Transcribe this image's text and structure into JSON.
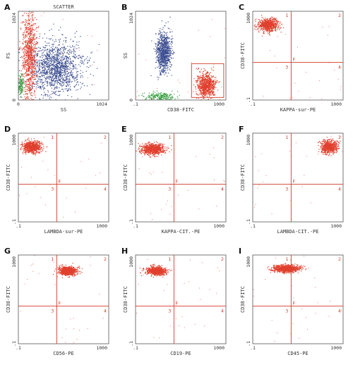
{
  "colors": {
    "red": "#e0402e",
    "blue": "#3d4f92",
    "green": "#3aa043",
    "gate": "#d23a2a",
    "frame": "#555555"
  },
  "chart_data": [
    {
      "letter": "A",
      "type": "scatter",
      "title": "SCATTER",
      "xlabel": "SS",
      "ylabel": "FS",
      "scale": "linear",
      "xlim": [
        0,
        1024
      ],
      "ylim": [
        0,
        1024
      ],
      "xticks": [
        "0",
        "1024"
      ],
      "yticks": [
        "0",
        "1024"
      ],
      "clusters": [
        {
          "color": "blue",
          "cx": 420,
          "cy": 380,
          "sx": 150,
          "sy": 150,
          "n": 1400
        },
        {
          "color": "red",
          "cx": 120,
          "cy": 520,
          "sx": 40,
          "sy": 280,
          "n": 900
        },
        {
          "color": "green",
          "cx": 25,
          "cy": 180,
          "sx": 15,
          "sy": 60,
          "n": 120
        }
      ]
    },
    {
      "letter": "B",
      "type": "scatter",
      "title": "",
      "xlabel": "CD38-FITC",
      "ylabel": "SS",
      "scale": "log-x",
      "xlim": [
        0.1,
        1000
      ],
      "ylim": [
        0,
        1024
      ],
      "xticks": [
        ".1",
        "1000"
      ],
      "yticks": [
        "0",
        "1024"
      ],
      "gate": {
        "x": [
          30,
          800
        ],
        "y": [
          30,
          420
        ]
      },
      "clusters": [
        {
          "color": "blue",
          "cx": 1.7,
          "cy": 560,
          "sx": 0.17,
          "sy": 110,
          "n": 900
        },
        {
          "color": "red",
          "cx": 130,
          "cy": 170,
          "sx": 0.2,
          "sy": 70,
          "n": 800
        },
        {
          "color": "green",
          "cx": 1.2,
          "cy": 40,
          "sx": 0.35,
          "sy": 25,
          "n": 220
        }
      ]
    },
    {
      "letter": "C",
      "type": "scatter",
      "title": "",
      "xlabel": "KAPPA-sur-PE",
      "ylabel": "CD38-FITC",
      "scale": "log",
      "xlim": [
        0.1,
        1000
      ],
      "ylim": [
        0.1,
        1000
      ],
      "quad_x": 5,
      "quad_y": 5,
      "xticks": [
        ".1",
        "1000"
      ],
      "yticks": [
        ".1",
        "1000"
      ],
      "quadrants": [
        "1",
        "2",
        "3",
        "4"
      ],
      "gate_label": "F",
      "clusters": [
        {
          "color": "red",
          "cx": 0.45,
          "cy": 250,
          "sx": 0.22,
          "sy": 0.14,
          "n": 700
        }
      ]
    },
    {
      "letter": "D",
      "type": "scatter",
      "title": "",
      "xlabel": "LAMBDA-sur-PE",
      "ylabel": "CD38-FITC",
      "scale": "log",
      "xlim": [
        0.1,
        1000
      ],
      "ylim": [
        0.1,
        1000
      ],
      "quad_x": 5,
      "quad_y": 5,
      "xticks": [
        ".1",
        "1000"
      ],
      "yticks": [
        ".1",
        "1000"
      ],
      "quadrants": [
        "1",
        "2",
        "3",
        "4"
      ],
      "gate_label": "F",
      "clusters": [
        {
          "color": "red",
          "cx": 0.38,
          "cy": 250,
          "sx": 0.2,
          "sy": 0.13,
          "n": 700
        }
      ]
    },
    {
      "letter": "E",
      "type": "scatter",
      "title": "",
      "xlabel": "KAPPA-CIT.-PE",
      "ylabel": "CD38-FITC",
      "scale": "log",
      "xlim": [
        0.1,
        1000
      ],
      "ylim": [
        0.1,
        1000
      ],
      "quad_x": 5,
      "quad_y": 5,
      "xticks": [
        ".1",
        "1000"
      ],
      "yticks": [
        ".1",
        "1000"
      ],
      "quadrants": [
        "1",
        "2",
        "3",
        "4"
      ],
      "gate_label": "F",
      "clusters": [
        {
          "color": "red",
          "cx": 0.55,
          "cy": 200,
          "sx": 0.25,
          "sy": 0.12,
          "n": 800
        }
      ]
    },
    {
      "letter": "F",
      "type": "scatter",
      "title": "",
      "xlabel": "LAMBDA-CIT.-PE",
      "ylabel": "CD38-FITC",
      "scale": "log",
      "xlim": [
        0.1,
        1000
      ],
      "ylim": [
        0.1,
        1000
      ],
      "quad_x": 5,
      "quad_y": 5,
      "xticks": [
        ".1",
        "1000"
      ],
      "yticks": [
        ".1",
        "1000"
      ],
      "quadrants": [
        "1",
        "2",
        "3",
        "4"
      ],
      "gate_label": "F",
      "clusters": [
        {
          "color": "red",
          "cx": 220,
          "cy": 250,
          "sx": 0.17,
          "sy": 0.14,
          "n": 700
        }
      ]
    },
    {
      "letter": "G",
      "type": "scatter",
      "title": "",
      "xlabel": "CD56-PE",
      "ylabel": "CD38-FITC",
      "scale": "log",
      "xlim": [
        0.1,
        1000
      ],
      "ylim": [
        0.1,
        1000
      ],
      "quad_x": 5,
      "quad_y": 5,
      "xticks": [
        ".1",
        "1000"
      ],
      "yticks": [
        ".1",
        "1000"
      ],
      "quadrants": [
        "1",
        "2",
        "3",
        "4"
      ],
      "gate_label": "F",
      "clusters": [
        {
          "color": "red",
          "cx": 15,
          "cy": 200,
          "sx": 0.2,
          "sy": 0.1,
          "n": 750
        }
      ]
    },
    {
      "letter": "H",
      "type": "scatter",
      "title": "",
      "xlabel": "CD19-PE",
      "ylabel": "CD38-FITC",
      "scale": "log",
      "xlim": [
        0.1,
        1000
      ],
      "ylim": [
        0.1,
        1000
      ],
      "quad_x": 5,
      "quad_y": 5,
      "xticks": [
        ".1",
        "1000"
      ],
      "yticks": [
        ".1",
        "1000"
      ],
      "quadrants": [
        "1",
        "2",
        "3",
        "4"
      ],
      "gate_label": "F",
      "clusters": [
        {
          "color": "red",
          "cx": 0.8,
          "cy": 200,
          "sx": 0.22,
          "sy": 0.09,
          "n": 750
        }
      ]
    },
    {
      "letter": "I",
      "type": "scatter",
      "title": "",
      "xlabel": "CD45-PE",
      "ylabel": "CD38-FITC",
      "scale": "log",
      "xlim": [
        0.1,
        1000
      ],
      "ylim": [
        0.1,
        1000
      ],
      "quad_x": 5,
      "quad_y": 5,
      "xticks": [
        ".1",
        "1000"
      ],
      "yticks": [
        ".1",
        "1000"
      ],
      "quadrants": [
        "1",
        "2",
        "3",
        "4"
      ],
      "gate_label": "F",
      "clusters": [
        {
          "color": "red",
          "cx": 3,
          "cy": 250,
          "sx": 0.3,
          "sy": 0.08,
          "n": 850
        }
      ]
    }
  ]
}
